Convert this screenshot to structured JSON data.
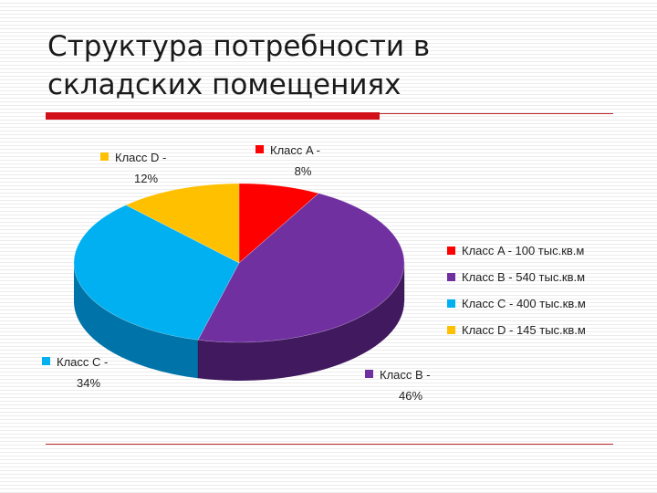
{
  "slide": {
    "title_line1": "Структура потребности в",
    "title_line2": "складских помещениях"
  },
  "colors": {
    "accent_line": "#c0282d",
    "accent_bar": "#d1101a"
  },
  "chart_data": {
    "type": "pie",
    "style": "3d",
    "legend_position": "right",
    "slices": [
      {
        "label_name": "Класс A -",
        "percent": "8%",
        "value": 8,
        "legend": "Класс A - 100 тыс.кв.м",
        "color": "#ff0000",
        "side_color": "#a80000"
      },
      {
        "label_name": "Класс B -",
        "percent": "46%",
        "value": 46,
        "legend": "Класс B - 540 тыс.кв.м",
        "color": "#7030a0",
        "side_color": "#41195f"
      },
      {
        "label_name": "Класс C -",
        "percent": "34%",
        "value": 34,
        "legend": "Класс C - 400 тыс.кв.м",
        "color": "#00b0f0",
        "side_color": "#0074a8"
      },
      {
        "label_name": "Класс D -",
        "percent": "12%",
        "value": 12,
        "legend": "Класс D - 145 тыс.кв.м",
        "color": "#ffc000",
        "side_color": "#b08400"
      }
    ]
  }
}
